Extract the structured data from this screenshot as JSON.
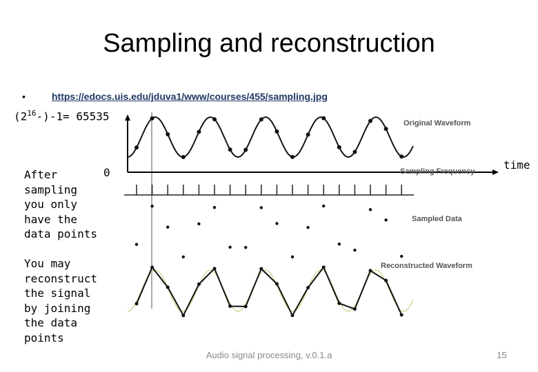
{
  "title": "Sampling and reconstruction",
  "bullet": {
    "link": "https://edocs.uis.edu/jduva1/www/courses/455/sampling.jpg"
  },
  "formula": {
    "prefix": "(2",
    "exponent": "16",
    "suffix": "-)-1= 65535"
  },
  "notes": [
    "After sampling you only have the data points",
    "You may reconstruct the signal by joining the data points"
  ],
  "figure": {
    "origin_label": "0",
    "axis_label": "time",
    "labels": [
      "Original Waveform",
      "Sampling Frequency",
      "Sampled Data",
      "Reconstructed Waveform"
    ]
  },
  "footer": {
    "text": "Audio signal processing, v.0.1.a",
    "page": "15"
  }
}
